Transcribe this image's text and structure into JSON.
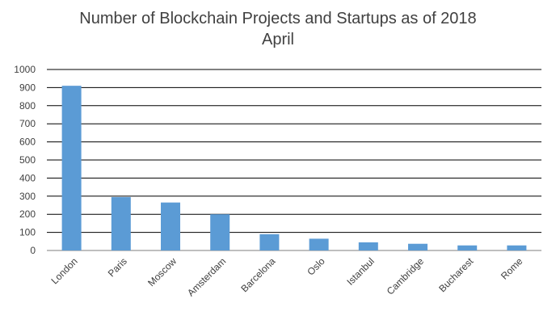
{
  "chart_data": {
    "type": "bar",
    "title_line1": "Number of Blockchain Projects and Startups as of 2018",
    "title_line2": "April",
    "categories": [
      "London",
      "Paris",
      "Moscow",
      "Amsterdam",
      "Barcelona",
      "Oslo",
      "Istanbul",
      "Cambridge",
      "Bucharest",
      "Rome"
    ],
    "values": [
      910,
      295,
      265,
      200,
      90,
      65,
      45,
      37,
      28,
      28
    ],
    "ylim": [
      0,
      1000
    ],
    "yticks": [
      0,
      100,
      200,
      300,
      400,
      500,
      600,
      700,
      800,
      900,
      1000
    ],
    "xlabel": "",
    "ylabel": "",
    "grid": true,
    "bar_color": "#5b9bd5"
  }
}
